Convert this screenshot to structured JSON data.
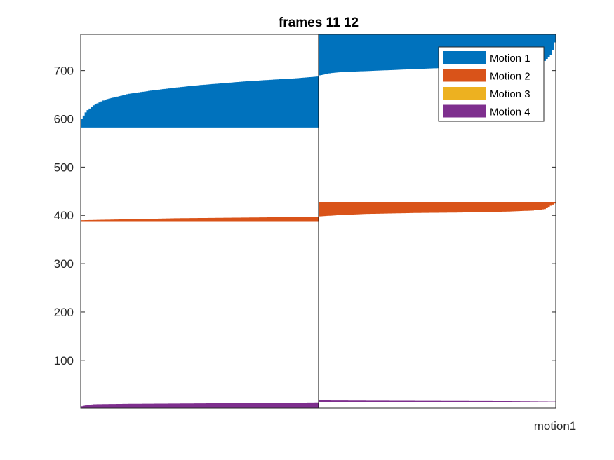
{
  "chart_data": {
    "type": "area",
    "title": "frames 11 12",
    "xlabel": "motion1",
    "ylabel": "",
    "xticks": [],
    "ylim": [
      1,
      775
    ],
    "yticks": [
      100,
      200,
      300,
      400,
      500,
      600,
      700
    ],
    "ytick_labels": [
      "100",
      "200",
      "300",
      "400",
      "500",
      "600",
      "700"
    ],
    "frame_divider": "middle",
    "legend": {
      "location": "top-right",
      "entries": [
        "Motion 1",
        "Motion 2",
        "Motion 3",
        "Motion 4"
      ]
    },
    "series": [
      {
        "name": "Motion 1",
        "color": "#0072BD",
        "frames": [
          {
            "base": 582,
            "profile_t": [
              0,
              0.02,
              0.05,
              0.1,
              0.2,
              0.3,
              0.4,
              0.5,
              0.6,
              0.7,
              0.8,
              0.9,
              0.95,
              1.0
            ],
            "profile_v": [
              600,
              616,
              628,
              640,
              652,
              659,
              665,
              670,
              674,
              678,
              681,
              684,
              686,
              688
            ]
          },
          {
            "base": 775,
            "profile_t": [
              0,
              0.05,
              0.1,
              0.2,
              0.3,
              0.4,
              0.5,
              0.6,
              0.7,
              0.8,
              0.9,
              0.95,
              0.98,
              1.0
            ],
            "profile_v": [
              690,
              695,
              697,
              699,
              701,
              703,
              705,
              707,
              709,
              711,
              715,
              720,
              735,
              775
            ]
          }
        ]
      },
      {
        "name": "Motion 2",
        "color": "#D95319",
        "frames": [
          {
            "base": 388,
            "profile_t": [
              0,
              0.1,
              0.2,
              0.4,
              0.6,
              0.8,
              1.0
            ],
            "profile_v": [
              390,
              391,
              392,
              394,
              395,
              396,
              397
            ]
          },
          {
            "base": 428,
            "profile_t": [
              0,
              0.1,
              0.2,
              0.4,
              0.6,
              0.8,
              0.9,
              0.95,
              1.0
            ],
            "profile_v": [
              398,
              401,
              403,
              405,
              406,
              408,
              410,
              413,
              427
            ]
          }
        ]
      },
      {
        "name": "Motion 3",
        "color": "#EDB120",
        "frames": []
      },
      {
        "name": "Motion 4",
        "color": "#7E2F8E",
        "frames": [
          {
            "base": 1,
            "profile_t": [
              0,
              0.02,
              0.05,
              0.2,
              0.5,
              0.8,
              1.0
            ],
            "profile_v": [
              5,
              7,
              9,
              10,
              11,
              12,
              13
            ]
          },
          {
            "base": 14,
            "profile_t": [
              0,
              0.2,
              0.5,
              0.8,
              0.9,
              1.0
            ],
            "profile_v": [
              17,
              16.5,
              16,
              15.5,
              15,
              14.5
            ]
          }
        ]
      }
    ]
  }
}
